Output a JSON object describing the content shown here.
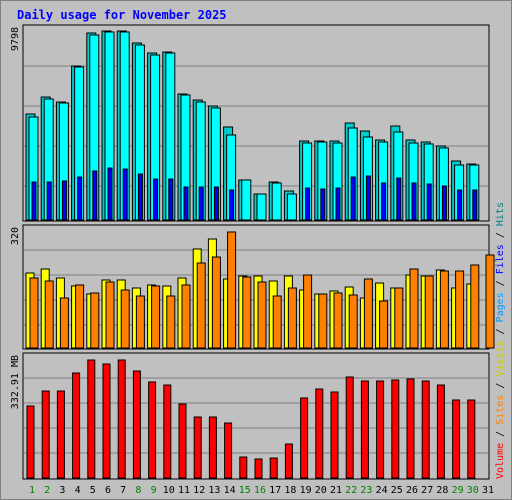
{
  "chart_data": {
    "type": "bar",
    "title": "Daily usage for November 2025",
    "categories": [
      "1",
      "2",
      "3",
      "4",
      "5",
      "6",
      "7",
      "8",
      "9",
      "10",
      "11",
      "12",
      "13",
      "14",
      "15",
      "16",
      "17",
      "18",
      "19",
      "20",
      "21",
      "22",
      "23",
      "24",
      "25",
      "26",
      "27",
      "28",
      "29",
      "30",
      "31"
    ],
    "weekend_days": [
      "1",
      "2",
      "8",
      "9",
      "15",
      "16",
      "22",
      "23",
      "29",
      "30"
    ],
    "panels": [
      {
        "name": "top",
        "max_label": "9798",
        "ymax": 9798,
        "series": [
          {
            "name": "Hits",
            "color": "#00cccc",
            "values": [
              5340,
              6200,
              5970,
              7760,
              9430,
              9540,
              9540,
              8930,
              8440,
              8470,
              6380,
              6040,
              5760,
              4700,
              2030,
              1330,
              1930,
              1440,
              3980,
              4000,
              3970,
              4880,
              4490,
              4050,
              4740,
              4040,
              3930,
              3720,
              2970,
              2820,
              null
            ]
          },
          {
            "name": "Files",
            "color": "#00ffff",
            "values": [
              5200,
              6100,
              5920,
              7720,
              9320,
              9480,
              9470,
              8850,
              8330,
              8410,
              6300,
              5950,
              5670,
              4310,
              2040,
              1320,
              1880,
              1330,
              3900,
              3930,
              3910,
              4670,
              4170,
              3960,
              4430,
              3910,
              3840,
              3630,
              2790,
              2790,
              null
            ]
          },
          {
            "name": "Pages",
            "color": "#0000ff",
            "values": [
              1900,
              1930,
              1970,
              2150,
              2490,
              2640,
              2600,
              2300,
              2060,
              2060,
              1690,
              1690,
              1690,
              1500,
              null,
              null,
              null,
              null,
              1620,
              1590,
              1600,
              2180,
              2230,
              1860,
              2110,
              1890,
              1840,
              1740,
              1500,
              1490,
              null
            ]
          }
        ]
      },
      {
        "name": "middle",
        "max_label": "320",
        "ymax": 320,
        "series": [
          {
            "name": "Visits",
            "color": "#ffff00",
            "values": [
              193,
              205,
              180,
              160,
              140,
              175,
              175,
              154,
              162,
              160,
              181,
              255,
              282,
              178,
              187,
              186,
              174,
              187,
              150,
              140,
              147,
              158,
              130,
              169,
              154,
              189,
              187,
              201,
              156,
              166,
              null
            ]
          },
          {
            "name": "Sites",
            "color": "#ff8000",
            "values": [
              180,
              174,
              130,
              162,
              142,
              170,
              149,
              135,
              160,
              135,
              162,
              219,
              234,
              300,
              184,
              170,
              135,
              155,
              189,
              140,
              142,
              138,
              177,
              122,
              155,
              205,
              187,
              198,
              199,
              214,
              239
            ]
          }
        ]
      },
      {
        "name": "bottom",
        "max_label": "332.91 MB",
        "ymax": 332.91,
        "series": [
          {
            "name": "Volume",
            "color": "#ff0000",
            "values": [
              185,
              224,
              224,
              270,
              301,
              293,
              303,
              273,
              247,
              239,
              189,
              155,
              157,
              142,
              54,
              48,
              52,
              87,
              204,
              228,
              221,
              258,
              248,
              249,
              250,
              253,
              248,
              239,
              199,
              199,
              null
            ]
          }
        ]
      }
    ],
    "legend": [
      {
        "label": "Volume",
        "color": "#ff0000"
      },
      {
        "label": "Sites",
        "color": "#ff8000"
      },
      {
        "label": "Visits",
        "color": "#cccc00"
      },
      {
        "label": "Pages",
        "color": "#0099ff"
      },
      {
        "label": "Files",
        "color": "#0000ff"
      },
      {
        "label": "Hits",
        "color": "#008080"
      }
    ],
    "separator": "/",
    "grid": true,
    "legend_placement": "right-vertical"
  }
}
